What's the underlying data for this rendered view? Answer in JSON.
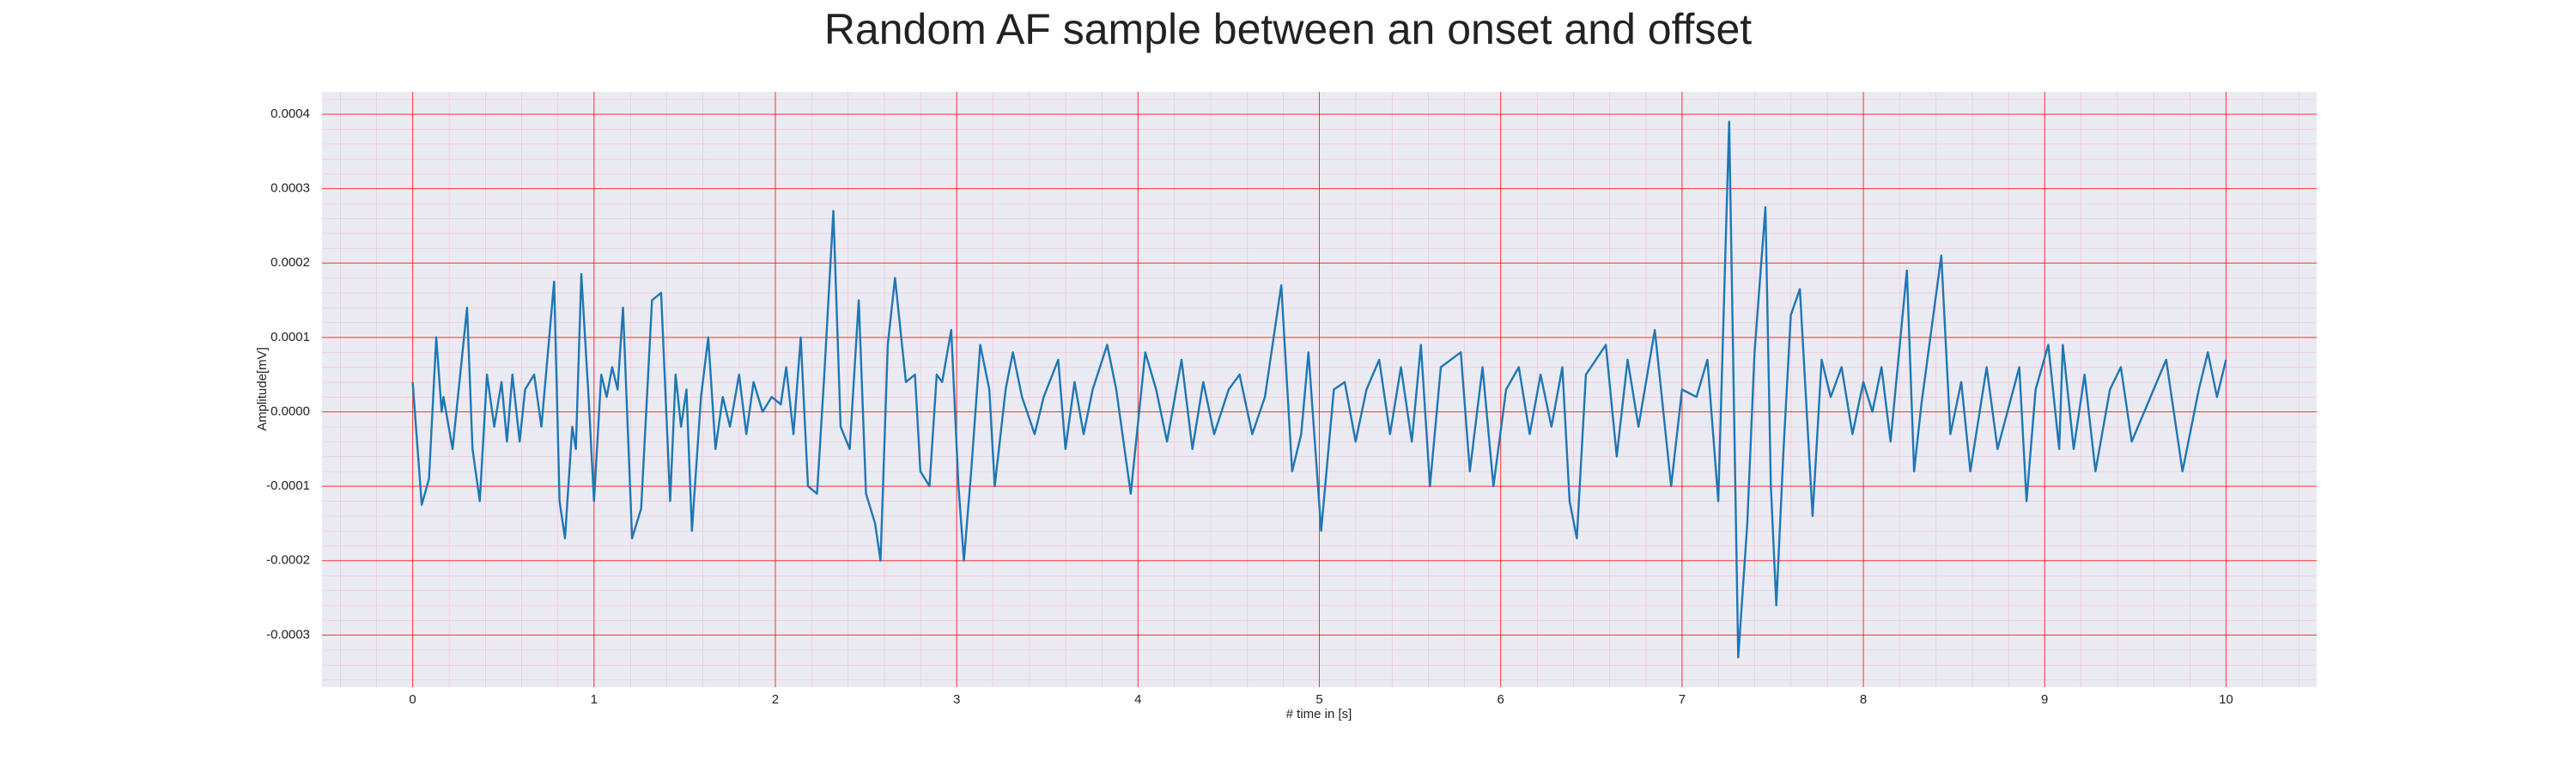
{
  "chart_data": {
    "type": "line",
    "title": "Random AF sample between an onset and offset",
    "xlabel": "# time in [s]",
    "ylabel": "Amplitude[mV]",
    "xlim": [
      -0.5,
      10.5
    ],
    "ylim": [
      -0.00037,
      0.00043
    ],
    "xticks": [
      0,
      1,
      2,
      3,
      4,
      5,
      6,
      7,
      8,
      9,
      10
    ],
    "yticks": [
      -0.0003,
      -0.0002,
      -0.0001,
      {
        "value": 0,
        "label": "0.0000"
      },
      0.0001,
      0.0002,
      0.0003,
      0.0004
    ],
    "grid": true,
    "grid_color": "#ff0000",
    "minor_grid": true,
    "minor_grid_color": "#f3b6c6",
    "minor_divisions": 5,
    "background": "#eaeaf2",
    "series": [
      {
        "color": "#1f77b4",
        "x": [
          0.0,
          0.05,
          0.09,
          0.13,
          0.16,
          0.17,
          0.22,
          0.3,
          0.33,
          0.37,
          0.41,
          0.45,
          0.49,
          0.52,
          0.55,
          0.59,
          0.62,
          0.67,
          0.71,
          0.78,
          0.81,
          0.84,
          0.88,
          0.9,
          0.93,
          0.97,
          1.0,
          1.04,
          1.07,
          1.1,
          1.13,
          1.16,
          1.21,
          1.26,
          1.32,
          1.37,
          1.42,
          1.45,
          1.48,
          1.51,
          1.54,
          1.59,
          1.63,
          1.67,
          1.71,
          1.75,
          1.8,
          1.84,
          1.88,
          1.93,
          1.98,
          2.03,
          2.06,
          2.1,
          2.14,
          2.18,
          2.23,
          2.27,
          2.32,
          2.36,
          2.41,
          2.46,
          2.5,
          2.55,
          2.58,
          2.62,
          2.66,
          2.72,
          2.77,
          2.8,
          2.85,
          2.89,
          2.92,
          2.97,
          3.01,
          3.04,
          3.08,
          3.13,
          3.18,
          3.21,
          3.27,
          3.31,
          3.36,
          3.43,
          3.48,
          3.56,
          3.6,
          3.65,
          3.7,
          3.75,
          3.83,
          3.88,
          3.92,
          3.96,
          4.04,
          4.1,
          4.16,
          4.24,
          4.3,
          4.36,
          4.42,
          4.5,
          4.56,
          4.63,
          4.7,
          4.79,
          4.85,
          4.9,
          4.94,
          5.01,
          5.08,
          5.14,
          5.2,
          5.26,
          5.33,
          5.39,
          5.45,
          5.51,
          5.56,
          5.61,
          5.67,
          5.78,
          5.83,
          5.9,
          5.96,
          6.03,
          6.1,
          6.16,
          6.22,
          6.28,
          6.34,
          6.38,
          6.42,
          6.47,
          6.58,
          6.64,
          6.7,
          6.76,
          6.85,
          6.94,
          7.0,
          7.08,
          7.14,
          7.2,
          7.26,
          7.31,
          7.36,
          7.4,
          7.46,
          7.49,
          7.52,
          7.56,
          7.6,
          7.65,
          7.72,
          7.77,
          7.82,
          7.88,
          7.94,
          8.0,
          8.05,
          8.1,
          8.15,
          8.24,
          8.28,
          8.32,
          8.43,
          8.48,
          8.54,
          8.59,
          8.68,
          8.74,
          8.86,
          8.9,
          8.95,
          9.02,
          9.08,
          9.1,
          9.16,
          9.22,
          9.28,
          9.36,
          9.42,
          9.48,
          9.67,
          9.76,
          9.85,
          9.9,
          9.95,
          10.0
        ],
        "values": [
          4e-05,
          -0.000125,
          -9e-05,
          0.0001,
          0.0,
          2e-05,
          -5e-05,
          0.00014,
          -5e-05,
          -0.00012,
          5e-05,
          -2e-05,
          4e-05,
          -4e-05,
          5e-05,
          -4e-05,
          3e-05,
          5e-05,
          -2e-05,
          0.000175,
          -0.00012,
          -0.00017,
          -2e-05,
          -5e-05,
          0.000185,
          2e-05,
          -0.00012,
          5e-05,
          2e-05,
          6e-05,
          3e-05,
          0.00014,
          -0.00017,
          -0.00013,
          0.00015,
          0.00016,
          -0.00012,
          5e-05,
          -2e-05,
          3e-05,
          -0.00016,
          2e-05,
          0.0001,
          -5e-05,
          2e-05,
          -2e-05,
          5e-05,
          -3e-05,
          4e-05,
          0.0,
          2e-05,
          1e-05,
          6e-05,
          -3e-05,
          0.0001,
          -0.0001,
          -0.00011,
          5e-05,
          0.00027,
          -2e-05,
          -5e-05,
          0.00015,
          -0.00011,
          -0.00015,
          -0.0002,
          9e-05,
          0.00018,
          4e-05,
          5e-05,
          -8e-05,
          -0.0001,
          5e-05,
          4e-05,
          0.00011,
          -0.0001,
          -0.0002,
          -8e-05,
          9e-05,
          3e-05,
          -0.0001,
          3e-05,
          8e-05,
          2e-05,
          -3e-05,
          2e-05,
          7e-05,
          -5e-05,
          4e-05,
          -3e-05,
          3e-05,
          9e-05,
          3e-05,
          -4e-05,
          -0.00011,
          8e-05,
          3e-05,
          -4e-05,
          7e-05,
          -5e-05,
          4e-05,
          -3e-05,
          3e-05,
          5e-05,
          -3e-05,
          2e-05,
          0.00017,
          -8e-05,
          -3e-05,
          8e-05,
          -0.00016,
          3e-05,
          4e-05,
          -4e-05,
          3e-05,
          7e-05,
          -3e-05,
          6e-05,
          -4e-05,
          9e-05,
          -0.0001,
          6e-05,
          8e-05,
          -8e-05,
          6e-05,
          -0.0001,
          3e-05,
          6e-05,
          -3e-05,
          5e-05,
          -2e-05,
          6e-05,
          -0.00012,
          -0.00017,
          5e-05,
          9e-05,
          -6e-05,
          7e-05,
          -2e-05,
          0.00011,
          -0.0001,
          3e-05,
          2e-05,
          7e-05,
          -0.00012,
          0.00039,
          -0.00033,
          -0.00015,
          8e-05,
          0.000275,
          -0.0001,
          -0.00026,
          -5e-05,
          0.00013,
          0.000165,
          -0.00014,
          7e-05,
          2e-05,
          6e-05,
          -3e-05,
          4e-05,
          0.0,
          6e-05,
          -4e-05,
          0.00019,
          -8e-05,
          1e-05,
          0.00021,
          -3e-05,
          4e-05,
          -8e-05,
          6e-05,
          -5e-05,
          6e-05,
          -0.00012,
          3e-05,
          9e-05,
          -5e-05,
          9e-05,
          -5e-05,
          5e-05,
          -8e-05,
          3e-05,
          6e-05,
          -4e-05,
          7e-05,
          -8e-05,
          3e-05,
          8e-05,
          2e-05,
          7e-05
        ]
      }
    ]
  }
}
